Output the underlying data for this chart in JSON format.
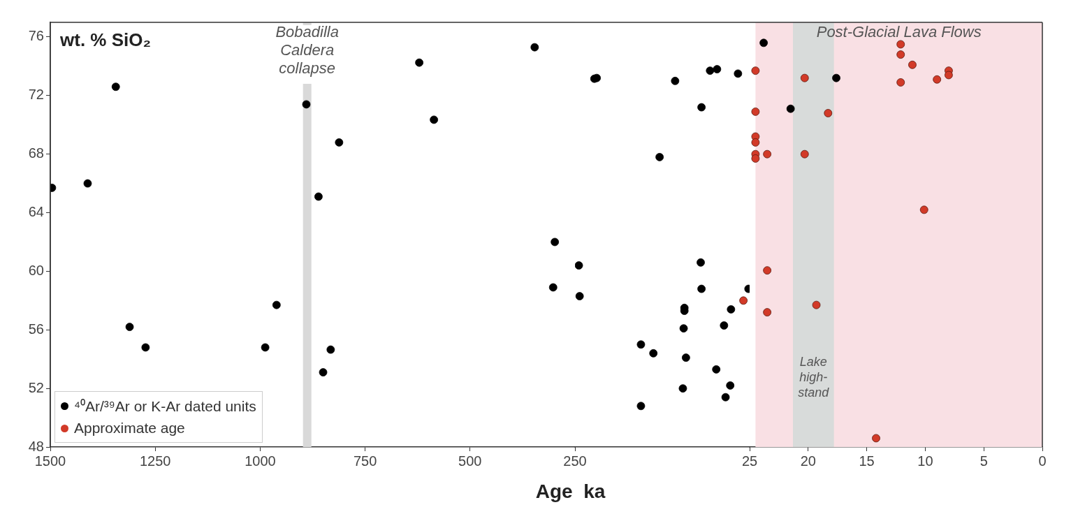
{
  "chart_data": [
    {
      "type": "scatter",
      "xlabel": "Age  ka",
      "ylabel": "wt. % SiO₂",
      "xlim": [
        1500,
        250
      ],
      "xticks": [
        1500,
        1250,
        1000,
        750,
        500,
        {
          "value": 250,
          "label": null
        }
      ],
      "ylim": [
        48,
        77
      ],
      "yticks": [
        48,
        52,
        56,
        60,
        64,
        68,
        72,
        76
      ],
      "tick_labels": "xy",
      "grid": false,
      "legend": "bottom left",
      "marker": "circle",
      "bands": [
        {
          "axis": "x",
          "from": 898,
          "to": 878,
          "label": "Bobadilla Caldera collapse",
          "color": "#d9d9d9"
        }
      ],
      "series": [
        {
          "name": "⁴⁰Ar/³⁹Ar or K-Ar dated units",
          "color": "#000000",
          "x": [
            1496,
            1411,
            1344,
            1311,
            1273,
            890,
            861,
            812,
            621,
            586,
            961,
            988,
            832,
            850,
            346,
            298,
            302
          ],
          "values": [
            65.7,
            66.0,
            72.6,
            56.2,
            54.8,
            71.4,
            65.1,
            68.8,
            74.25,
            70.35,
            57.7,
            54.8,
            54.65,
            53.1,
            75.3,
            62.0,
            58.9
          ]
        }
      ]
    },
    {
      "type": "scatter",
      "xlim": [
        250,
        25
      ],
      "xticks": [
        250,
        25
      ],
      "ylim": [
        48,
        77
      ],
      "yticks": [
        48,
        52,
        56,
        60,
        64,
        68,
        72,
        76
      ],
      "tick_labels": "x",
      "grid": false,
      "marker": "circle",
      "series": [
        {
          "color": "#000000",
          "x": [
            225,
            222,
            141,
            121,
            87,
            76,
            67,
            40,
            245,
            244,
            88,
            87,
            26.5,
            109,
            109,
            49,
            58,
            110,
            165,
            149,
            107,
            68,
            50,
            111,
            56,
            165
          ],
          "values": [
            73.15,
            73.2,
            67.8,
            73.0,
            71.2,
            73.7,
            73.8,
            73.5,
            60.4,
            58.3,
            60.6,
            58.8,
            58.8,
            57.5,
            57.3,
            57.4,
            56.3,
            56.1,
            55.0,
            54.4,
            54.1,
            53.3,
            52.2,
            52.0,
            51.4,
            50.8
          ]
        },
        {
          "color": "#d23a28",
          "x": [
            33
          ],
          "values": [
            58.0
          ]
        }
      ]
    },
    {
      "type": "scatter",
      "xlim": [
        25,
        0
      ],
      "xticks": [
        20,
        15,
        10,
        5,
        0
      ],
      "ylim": [
        48,
        77
      ],
      "yticks": [
        48,
        52,
        56,
        60,
        64,
        68,
        72,
        76
      ],
      "tick_labels": "x",
      "grid": false,
      "marker": "circle",
      "bands": [
        {
          "axis": "x",
          "from": 24.5,
          "to": 0,
          "label": "Post-Glacial Lava Flows",
          "color": "#f9e0e4"
        },
        {
          "axis": "x",
          "from": 21.3,
          "to": 17.8,
          "label": "Lake high-stand",
          "color": "#d8dbda"
        }
      ],
      "series": [
        {
          "color": "#000000",
          "x": [
            23.8,
            21.5,
            17.6
          ],
          "values": [
            75.6,
            71.1,
            73.2
          ]
        },
        {
          "name": "Approximate age",
          "color": "#d23a28",
          "x": [
            24.5,
            24.5,
            24.5,
            24.5,
            24.5,
            24.5,
            23.5,
            20.3,
            20.3,
            18.3,
            12.1,
            12.1,
            11.1,
            12.1,
            9.0,
            8.0,
            8.0,
            10.1,
            14.2,
            23.5,
            23.5,
            19.3
          ],
          "values": [
            73.7,
            70.9,
            69.2,
            68.8,
            68.0,
            67.7,
            68.0,
            73.2,
            68.0,
            70.8,
            75.5,
            74.8,
            74.1,
            72.9,
            73.1,
            73.7,
            73.4,
            64.2,
            48.6,
            60.06,
            57.2,
            57.7
          ]
        }
      ]
    }
  ]
}
